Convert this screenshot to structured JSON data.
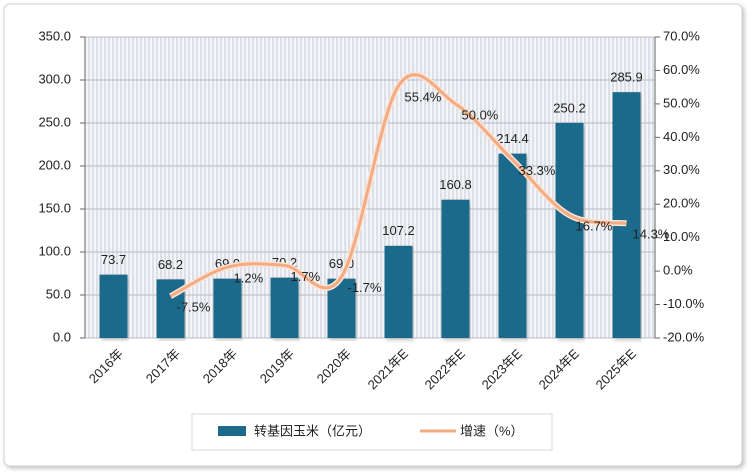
{
  "chart_data": {
    "type": "bar",
    "categories": [
      "2016年",
      "2017年",
      "2018年",
      "2019年",
      "2020年",
      "2021年E",
      "2022年E",
      "2023年E",
      "2024年E",
      "2025年E"
    ],
    "series": [
      {
        "name": "转基因玉米（亿元）",
        "type": "bar",
        "color": "#1d6a8b",
        "axis": "y",
        "values": [
          73.7,
          68.2,
          69.0,
          70.2,
          69.0,
          107.2,
          160.8,
          214.4,
          250.2,
          285.9
        ],
        "value_labels": [
          "73.7",
          "68.2",
          "69.0",
          "70.2",
          "69.0",
          "107.2",
          "160.8",
          "214.4",
          "250.2",
          "285.9"
        ]
      },
      {
        "name": "增速（%）",
        "type": "line",
        "color": "#f2ab82",
        "axis": "y2",
        "values": [
          null,
          -7.5,
          1.2,
          1.7,
          -1.7,
          55.4,
          50.0,
          33.3,
          16.7,
          14.3
        ],
        "value_labels": [
          null,
          "-7.5%",
          "1.2%",
          "1.7%",
          "-1.7%",
          "55.4%",
          "50.0%",
          "33.3%",
          "16.7%",
          "14.3%"
        ]
      }
    ],
    "ylim": [
      0,
      350
    ],
    "yticks": [
      {
        "value": 0,
        "label": "0.0"
      },
      {
        "value": 50,
        "label": "50.0"
      },
      {
        "value": 100,
        "label": "100.0"
      },
      {
        "value": 150,
        "label": "150.0"
      },
      {
        "value": 200,
        "label": "200.0"
      },
      {
        "value": 250,
        "label": "250.0"
      },
      {
        "value": 300,
        "label": "300.0"
      },
      {
        "value": 350,
        "label": "350.0"
      }
    ],
    "y2lim": [
      -20,
      70
    ],
    "y2ticks": [
      {
        "value": -20,
        "label": "-20.0%"
      },
      {
        "value": -10,
        "label": "-10.0%"
      },
      {
        "value": 0,
        "label": "0.0%"
      },
      {
        "value": 10,
        "label": "10.0%"
      },
      {
        "value": 20,
        "label": "20.0%"
      },
      {
        "value": 30,
        "label": "30.0%"
      },
      {
        "value": 40,
        "label": "40.0%"
      },
      {
        "value": 50,
        "label": "50.0%"
      },
      {
        "value": 60,
        "label": "60.0%"
      },
      {
        "value": 70,
        "label": "70.0%"
      }
    ],
    "grid": true,
    "legend": "bottom"
  }
}
